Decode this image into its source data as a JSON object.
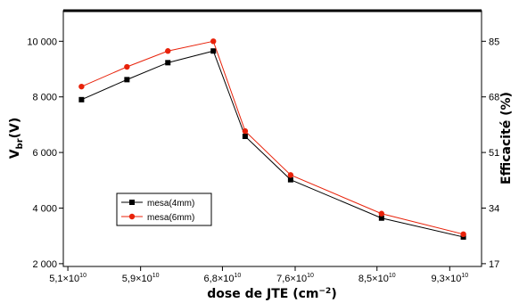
{
  "chart_data": {
    "type": "line",
    "x": [
      52500000000.0,
      57500000000.0,
      62000000000.0,
      67000000000.0,
      70500000000.0,
      75500000000.0,
      85500000000.0,
      94500000000.0
    ],
    "series": [
      {
        "name": "mesa(4mm)",
        "color": "#000000",
        "marker": "square",
        "values": [
          7900,
          8620,
          9230,
          9650,
          6580,
          5020,
          3640,
          2960
        ]
      },
      {
        "name": "mesa(6mm)",
        "color": "#e8220a",
        "marker": "circle",
        "values": [
          8370,
          9080,
          9650,
          10000,
          6770,
          5190,
          3800,
          3060
        ]
      }
    ],
    "xlim": [
      50500000000.0,
      96500000000.0
    ],
    "ylim": [
      1900,
      11100
    ],
    "x_ticks": [
      {
        "v": 51000000000.0,
        "base": "5,1×10",
        "exp": "10"
      },
      {
        "v": 59000000000.0,
        "base": "5,9×10",
        "exp": "10"
      },
      {
        "v": 68000000000.0,
        "base": "6,8×10",
        "exp": "10"
      },
      {
        "v": 76000000000.0,
        "base": "7,6×10",
        "exp": "10"
      },
      {
        "v": 85000000000.0,
        "base": "8,5×10",
        "exp": "10"
      },
      {
        "v": 93000000000.0,
        "base": "9,3×10",
        "exp": "10"
      }
    ],
    "y_ticks": [
      {
        "v": 2000,
        "label": "2 000"
      },
      {
        "v": 4000,
        "label": "4 000"
      },
      {
        "v": 6000,
        "label": "6 000"
      },
      {
        "v": 8000,
        "label": "8 000"
      },
      {
        "v": 10000,
        "label": "10 000"
      }
    ],
    "y2_ticks": [
      {
        "v": 2000,
        "label": "17"
      },
      {
        "v": 4000,
        "label": "34"
      },
      {
        "v": 6000,
        "label": "51"
      },
      {
        "v": 8000,
        "label": "68"
      },
      {
        "v": 10000,
        "label": "85"
      }
    ],
    "xlabel": {
      "text": "dose de JTE (cm",
      "sup": "−2",
      "close": ")"
    },
    "ylabel": {
      "main": "V",
      "sub": "br",
      "rest": "(V)"
    },
    "y2label": "Efficacité (%)",
    "legend_position": "lower-left",
    "grid": false
  }
}
